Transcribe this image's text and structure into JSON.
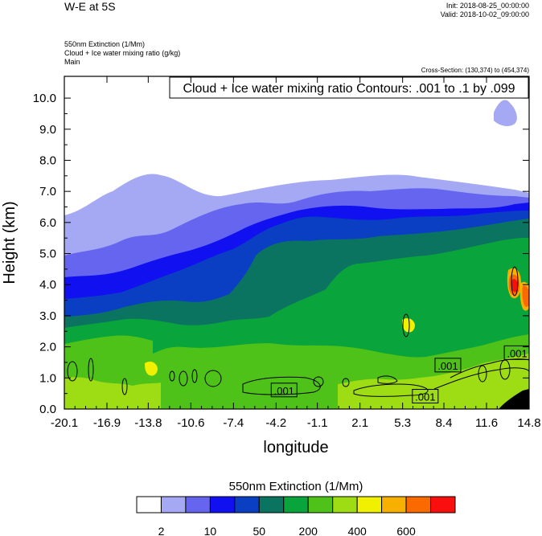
{
  "header": {
    "title": "W-E at 5S",
    "init": "Init: 2018-08-25_00:00:00",
    "valid": "Valid: 2018-10-02_09:00:00",
    "field_line": "550nm Extinction   (1/Mm)",
    "contour_line": "Cloud + Ice water mixing ratio   (g/kg)",
    "group_line": "Main",
    "cross_section": "Cross-Section: (130,374) to (454,374)"
  },
  "chart_data": {
    "type": "heatmap",
    "title": "Cloud + Ice water mixing ratio Contours: .001 to .1 by .099",
    "xlabel": "longitude",
    "ylabel": "Height (km)",
    "x_ticks": [
      "-20.1",
      "-16.9",
      "-13.8",
      "-10.6",
      "-7.4",
      "-4.2",
      "-1.1",
      "2.1",
      "5.3",
      "8.4",
      "11.6",
      "14.8"
    ],
    "x_values": [
      -20.1,
      -16.9,
      -13.8,
      -10.6,
      -7.4,
      -4.2,
      -1.1,
      2.1,
      5.3,
      8.4,
      11.6,
      14.8
    ],
    "y_ticks": [
      "0.0",
      "1.0",
      "2.0",
      "3.0",
      "4.0",
      "5.0",
      "6.0",
      "7.0",
      "8.0",
      "9.0",
      "10.0"
    ],
    "xlim": [
      -20.1,
      14.8
    ],
    "ylim": [
      0,
      10.7
    ],
    "colorbar": {
      "label": "550nm Extinction  (1/Mm)",
      "labels": [
        "2",
        "10",
        "50",
        "200",
        "400",
        "600"
      ],
      "colors": [
        "#ffffff",
        "#a5a8f2",
        "#6565f0",
        "#1010f0",
        "#0a3fc4",
        "#0a7460",
        "#0aa43c",
        "#4fc21a",
        "#9edc14",
        "#f0f000",
        "#f7b000",
        "#fb6a00",
        "#fa0f0f"
      ]
    },
    "contour_labels": [
      {
        "text": ".001",
        "x": -3.6,
        "y": 0.6
      },
      {
        "text": ".001",
        "x": 7.0,
        "y": 0.4
      },
      {
        "text": ".001",
        "x": 8.7,
        "y": 1.4
      },
      {
        "text": ".001",
        "x": 13.9,
        "y": 1.8
      }
    ]
  }
}
